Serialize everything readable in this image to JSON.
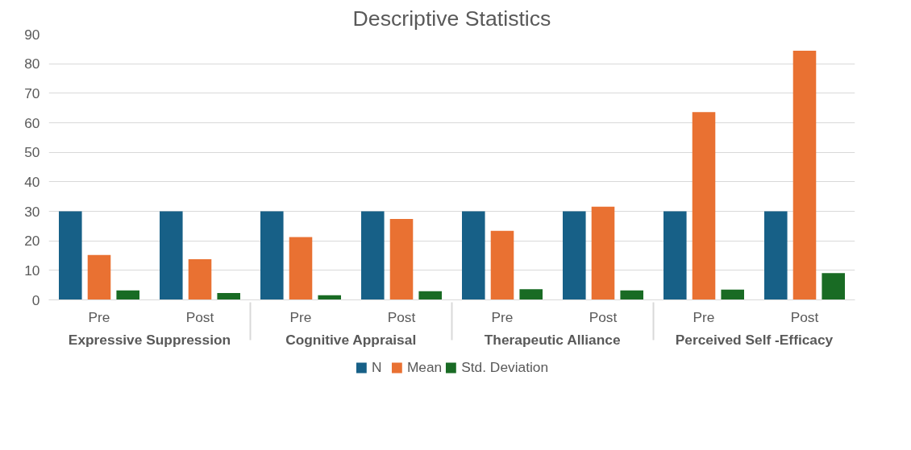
{
  "chart_data": {
    "type": "bar",
    "title": "Descriptive Statistics",
    "categories": [
      "Pre",
      "Post",
      "Pre",
      "Post",
      "Pre",
      "Post",
      "Pre",
      "Post"
    ],
    "annotations": [
      "Expressive Suppression",
      "Cognitive Appraisal",
      "Therapeutic Alliance",
      "Perceived Self -Efficacy"
    ],
    "series": [
      {
        "name": "N",
        "color": "#176087",
        "values": [
          30,
          30,
          30,
          30,
          30,
          30,
          30,
          30
        ]
      },
      {
        "name": "Mean",
        "color": "#e97132",
        "values": [
          15.2,
          13.8,
          21.3,
          27.4,
          23.4,
          31.6,
          63.6,
          84.4
        ]
      },
      {
        "name": "Std. Deviation",
        "color": "#196b24",
        "values": [
          3.2,
          2.3,
          1.6,
          2.9,
          3.6,
          3.2,
          3.5,
          9.1
        ]
      }
    ],
    "ylim": [
      0,
      90
    ],
    "yticks": [
      0,
      10,
      20,
      30,
      40,
      50,
      60,
      70,
      80,
      90
    ],
    "grid": "y",
    "legend": "bottom"
  }
}
